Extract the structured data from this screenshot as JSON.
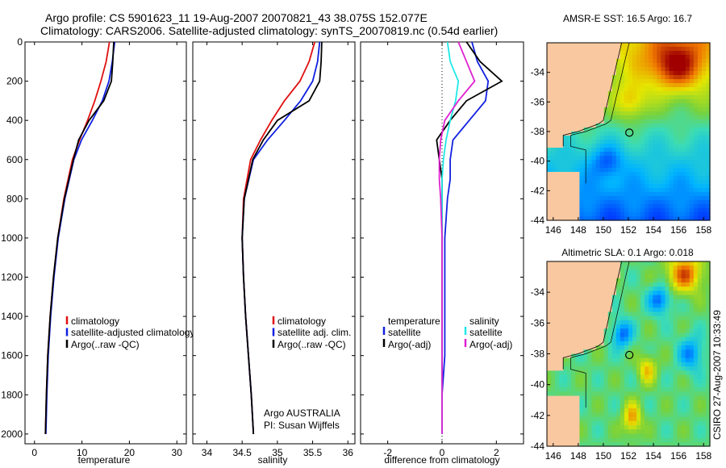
{
  "header": {
    "line1": "Argo profile: CS 5901623_11 19-Aug-2007 20070821_43 38.075S 152.077E",
    "line2": "Climatology: CARS2006. Satellite-adjusted climatology: synTS_20070819.nc (0.54d earlier)"
  },
  "side_label": "CSIRO 27-Aug-2007 10:33:49",
  "colors": {
    "red": "#e01010",
    "blue": "#1020e0",
    "black": "#000000",
    "cyan": "#20e8e8",
    "magenta": "#e020d0",
    "land": "#f9c8a0"
  },
  "chart_data": [
    {
      "type": "line",
      "id": "temperature",
      "xlabel": "temperature",
      "ylabel": "",
      "xlim": [
        -2,
        32
      ],
      "ylim": [
        2050,
        0
      ],
      "x_ticks": [
        "0",
        "10",
        "20",
        "30"
      ],
      "y_ticks": [
        "0",
        "200",
        "400",
        "600",
        "800",
        "1000",
        "1200",
        "1400",
        "1600",
        "1800",
        "2000"
      ],
      "legend": [
        "climatology",
        "satellite-adjusted climatology",
        "Argo(..raw -QC)"
      ],
      "series": [
        {
          "name": "climatology",
          "color": "red",
          "depth": [
            0,
            100,
            200,
            300,
            400,
            500,
            600,
            800,
            1000,
            1200,
            1400,
            1600,
            1800,
            2000
          ],
          "values": [
            15.8,
            15.1,
            14.0,
            12.7,
            11.2,
            9.5,
            8.0,
            6.2,
            4.9,
            4.0,
            3.3,
            2.8,
            2.5,
            2.3
          ]
        },
        {
          "name": "satellite-adjusted climatology",
          "color": "blue",
          "depth": [
            0,
            100,
            200,
            300,
            400,
            500,
            600,
            800,
            1000,
            1200,
            1400,
            1600,
            1800,
            2000
          ],
          "values": [
            16.9,
            16.4,
            15.7,
            14.3,
            12.2,
            9.9,
            8.3,
            6.4,
            5.0,
            4.1,
            3.4,
            2.9,
            2.6,
            2.4
          ]
        },
        {
          "name": "Argo(..raw -QC)",
          "color": "black",
          "depth": [
            0,
            100,
            200,
            300,
            400,
            500,
            600,
            800,
            1000,
            1200,
            1400,
            1600,
            1800,
            2000
          ],
          "values": [
            16.7,
            16.5,
            16.2,
            14.6,
            11.5,
            9.3,
            8.2,
            6.3,
            4.9,
            4.0,
            3.3,
            2.8,
            2.5,
            2.3
          ]
        }
      ]
    },
    {
      "type": "line",
      "id": "salinity",
      "xlabel": "salinity",
      "ylabel": "",
      "xlim": [
        33.8,
        36.1
      ],
      "ylim": [
        2050,
        0
      ],
      "x_ticks": [
        "34",
        "34.5",
        "35",
        "35.5",
        "36"
      ],
      "legend": [
        "climatology",
        "satellite adj. clim.",
        "Argo(..raw -QC)"
      ],
      "notes": [
        "Argo AUSTRALIA",
        "PI: Susan Wijffels"
      ],
      "series": [
        {
          "name": "climatology",
          "color": "red",
          "depth": [
            0,
            100,
            200,
            300,
            400,
            500,
            600,
            800,
            1000,
            1200,
            1400,
            1600,
            1800,
            2000
          ],
          "values": [
            35.53,
            35.45,
            35.32,
            35.1,
            34.92,
            34.76,
            34.62,
            34.52,
            34.5,
            34.52,
            34.55,
            34.59,
            34.63,
            34.66
          ]
        },
        {
          "name": "satellite adj. clim.",
          "color": "blue",
          "depth": [
            0,
            100,
            200,
            300,
            400,
            500,
            600,
            800,
            1000,
            1200,
            1400,
            1600,
            1800,
            2000
          ],
          "values": [
            35.6,
            35.57,
            35.5,
            35.33,
            35.1,
            34.86,
            34.66,
            34.53,
            34.5,
            34.52,
            34.55,
            34.59,
            34.63,
            34.66
          ]
        },
        {
          "name": "Argo(..raw -QC)",
          "color": "black",
          "depth": [
            0,
            100,
            200,
            300,
            400,
            500,
            600,
            800,
            1000,
            1200,
            1400,
            1600,
            1800,
            2000
          ],
          "values": [
            35.63,
            35.62,
            35.6,
            35.45,
            35.0,
            34.8,
            34.65,
            34.53,
            34.5,
            34.52,
            34.55,
            34.59,
            34.63,
            34.66
          ]
        }
      ]
    },
    {
      "type": "line",
      "id": "difference",
      "xlabel": "difference from climatology",
      "ylabel": "",
      "xlim": [
        -3,
        3
      ],
      "ylim": [
        2050,
        0
      ],
      "x_ticks": [
        "-2",
        "0",
        "2"
      ],
      "legend_titles": [
        "temperature",
        "salinity"
      ],
      "legend": [
        "satellite",
        "Argo(-adj)",
        "satellite",
        "Argo(-adj)"
      ],
      "series": [
        {
          "name": "temperature satellite",
          "color": "blue",
          "depth": [
            0,
            100,
            200,
            300,
            400,
            500,
            600,
            700,
            800,
            1000,
            1200,
            1400,
            1600,
            1800,
            2000
          ],
          "values": [
            1.1,
            1.3,
            1.7,
            1.6,
            1.0,
            0.4,
            0.3,
            0.3,
            0.2,
            0.1,
            0.1,
            0.1,
            0.1,
            0.0,
            0.0
          ]
        },
        {
          "name": "temperature Argo(-adj)",
          "color": "black",
          "depth": [
            0,
            100,
            200,
            300,
            400,
            500,
            600,
            700,
            800,
            1000,
            1200,
            1400,
            1600,
            1800,
            2000
          ],
          "values": [
            0.9,
            1.4,
            2.2,
            0.9,
            0.3,
            -0.2,
            -0.1,
            0.0,
            0.0,
            0.0,
            0.0,
            0.0,
            0.0,
            0.0,
            0.0
          ]
        },
        {
          "name": "salinity satellite",
          "color": "cyan",
          "depth": [
            0,
            100,
            200,
            300,
            400,
            500,
            600,
            700,
            800,
            1000,
            1200,
            1400,
            1600,
            1800,
            2000
          ],
          "values": [
            0.2,
            0.3,
            0.6,
            0.5,
            0.3,
            0.15,
            0.05,
            0.0,
            0.0,
            0.0,
            0.0,
            0.0,
            0.0,
            0.0,
            0.0
          ]
        },
        {
          "name": "salinity Argo(-adj)",
          "color": "magenta",
          "depth": [
            0,
            100,
            200,
            300,
            400,
            500,
            600,
            700,
            800,
            1000,
            1200,
            1400,
            1600,
            1800,
            2000
          ],
          "values": [
            0.6,
            0.9,
            1.2,
            0.6,
            0.1,
            -0.05,
            -0.1,
            -0.1,
            -0.05,
            0.0,
            0.0,
            0.0,
            0.0,
            0.0,
            0.0
          ]
        }
      ]
    },
    {
      "type": "heatmap",
      "id": "sst-map",
      "title": "AMSR-E SST: 16.5 Argo: 16.7",
      "xlim": [
        145.5,
        158.5
      ],
      "ylim": [
        -44,
        -32
      ],
      "x_ticks": [
        "146",
        "148",
        "150",
        "152",
        "154",
        "156",
        "158"
      ],
      "y_ticks": [
        "-34",
        "-36",
        "-38",
        "-40",
        "-42",
        "-44"
      ],
      "marker": {
        "lon": 152.077,
        "lat": -38.075
      }
    },
    {
      "type": "heatmap",
      "id": "sla-map",
      "title": "Altimetric SLA: 0.1 Argo: 0.018",
      "xlim": [
        145.5,
        158.5
      ],
      "ylim": [
        -44,
        -32
      ],
      "x_ticks": [
        "146",
        "148",
        "150",
        "152",
        "154",
        "156",
        "158"
      ],
      "y_ticks": [
        "-34",
        "-36",
        "-38",
        "-40",
        "-42",
        "-44"
      ],
      "marker": {
        "lon": 152.077,
        "lat": -38.075
      }
    }
  ]
}
